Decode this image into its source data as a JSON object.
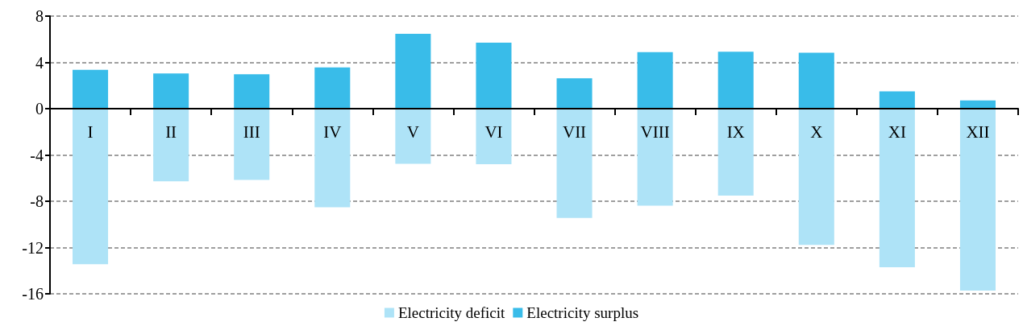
{
  "chart_data": {
    "type": "bar",
    "stacked": true,
    "categories": [
      "I",
      "II",
      "III",
      "IV",
      "V",
      "VI",
      "VII",
      "VIII",
      "IX",
      "X",
      "XI",
      "XII"
    ],
    "series": [
      {
        "name": "Electricity deficit",
        "color": "#aee3f7",
        "values": [
          -13.45,
          -6.27,
          -6.16,
          -8.53,
          -4.77,
          -4.8,
          -9.44,
          -8.39,
          -7.51,
          -11.78,
          -13.7,
          -15.73
        ]
      },
      {
        "name": "Electricity surplus",
        "color": "#39bce9",
        "values": [
          3.36,
          3.05,
          2.97,
          3.56,
          6.47,
          5.71,
          2.63,
          4.89,
          4.92,
          4.83,
          1.5,
          0.71
        ]
      }
    ],
    "ylim": [
      -16,
      8
    ],
    "yticks": [
      -16,
      -12,
      -8,
      -4,
      0,
      4,
      8
    ],
    "grid": "y",
    "legend": "bottom"
  }
}
